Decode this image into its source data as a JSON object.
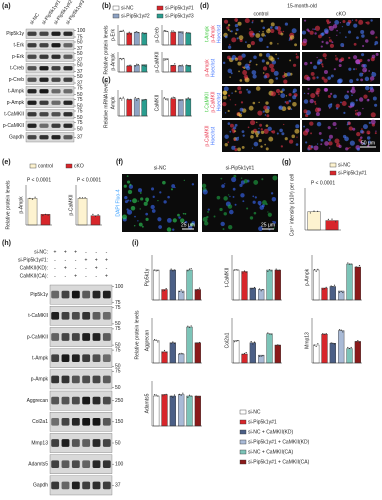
{
  "panel_a": {
    "label": "(a)",
    "lanes": [
      "si-NC",
      "si-Pip5k1γ#1",
      "si-Pip5k1γ#2",
      "si-Pip5k1γ#3"
    ],
    "rows": [
      {
        "name": "Pip5k1γ",
        "mw": [
          "100",
          "75"
        ]
      },
      {
        "name": "t-Erk",
        "mw": [
          "50",
          "37"
        ]
      },
      {
        "name": "p-Erk",
        "mw": [
          "50",
          "37"
        ]
      },
      {
        "name": "t-Creb",
        "mw": [
          "50",
          "37"
        ]
      },
      {
        "name": "p-Creb",
        "mw": [
          "50",
          "37"
        ]
      },
      {
        "name": "t-Ampk",
        "mw": [
          "75",
          "50"
        ]
      },
      {
        "name": "p-Ampk",
        "mw": [
          "75",
          "50"
        ]
      },
      {
        "name": "t-CaMKII",
        "mw": [
          "75",
          "50"
        ]
      },
      {
        "name": "p-CaMKII",
        "mw": [
          "75",
          "50"
        ]
      },
      {
        "name": "Gapdh",
        "mw": [
          "37"
        ]
      }
    ]
  },
  "panel_b": {
    "label": "(b)",
    "ylabel": "Relative protein levels",
    "series": [
      {
        "name": "si-NC",
        "color": "#ffffff"
      },
      {
        "name": "si-Pip5k1γ#1",
        "color": "#d7262b"
      },
      {
        "name": "si-Pip5k1γ#2",
        "color": "#8ea3c4"
      },
      {
        "name": "si-Pip5k1γ#3",
        "color": "#2a9d8f"
      }
    ],
    "charts": [
      {
        "name": "p-Erk",
        "values": [
          1,
          0.9,
          0.95,
          0.9
        ],
        "ylim": [
          0,
          1.5
        ]
      },
      {
        "name": "p-Creb",
        "values": [
          1,
          0.95,
          1,
          0.9
        ],
        "ylim": [
          0,
          1.5
        ]
      },
      {
        "name": "p-Ampk",
        "values": [
          1,
          0.45,
          0.5,
          0.55
        ],
        "ylim": [
          0,
          1.5
        ]
      },
      {
        "name": "p-CaMKII",
        "values": [
          1,
          0.5,
          0.45,
          0.5
        ],
        "ylim": [
          0,
          1.5
        ]
      }
    ]
  },
  "panel_c": {
    "label": "(c)",
    "ylabel": "Relative mRNA levels",
    "charts": [
      {
        "name": "Ampk",
        "values": [
          1,
          0.95,
          1,
          0.95
        ],
        "ylim": [
          0,
          1.5
        ]
      },
      {
        "name": "CaMKII",
        "values": [
          1,
          1,
          0.95,
          1
        ],
        "ylim": [
          0,
          1.5
        ]
      }
    ]
  },
  "panel_d": {
    "label": "(d)",
    "title": "15-month-old",
    "columns": [
      "control",
      "cKO"
    ],
    "rows": [
      [
        "t-Ampk",
        "p-Ampk",
        "Hoechst"
      ],
      [
        "p-Ampk",
        "Hoechst"
      ],
      [
        "t-CaMKII",
        "p-CaMKII",
        "Hoechst"
      ],
      [
        "p-CaMKII",
        "Hoechst"
      ]
    ],
    "scale": "50 μm"
  },
  "panel_e": {
    "label": "(e)",
    "ylabel": "Relative protein levels",
    "p": "P < 0.0001",
    "series": [
      {
        "name": "control",
        "color": "#fdf3d0"
      },
      {
        "name": "cKO",
        "color": "#d7262b"
      }
    ],
    "charts": [
      {
        "name": "p-Ampk",
        "values": [
          1,
          0.4
        ],
        "ylim": [
          0,
          1.5
        ]
      },
      {
        "name": "p-CaMKII",
        "values": [
          1,
          0.35
        ],
        "ylim": [
          0,
          1.5
        ]
      }
    ]
  },
  "panel_f": {
    "label": "(f)",
    "columns": [
      "si-NC",
      "si-Pip5k1γ#1"
    ],
    "stain": "DAPI Fluo-4",
    "scale": "25 μm"
  },
  "panel_g": {
    "label": "(g)",
    "ylabel": "Ca²⁺ intensity (x10³) per cell",
    "p": "P < 0.0001",
    "series": [
      {
        "name": "si-NC",
        "color": "#fdf3d0"
      },
      {
        "name": "si-Pip5k1γ#1",
        "color": "#d7262b"
      }
    ],
    "charts": [
      {
        "name": "",
        "values": [
          3.5,
          1.8
        ],
        "ylim": [
          0,
          8
        ]
      }
    ]
  },
  "panel_h": {
    "label": "(h)",
    "conditions": [
      {
        "name": "si-NC:",
        "signs": [
          "+",
          "+",
          "+",
          "-",
          "-",
          "-"
        ]
      },
      {
        "name": "si-Pip5k1γ#1:",
        "signs": [
          "-",
          "-",
          "-",
          "+",
          "+",
          "+"
        ]
      },
      {
        "name": "CaMKII(KD):",
        "signs": [
          "-",
          "+",
          "-",
          "-",
          "+",
          "-"
        ]
      },
      {
        "name": "CaMKII(CA):",
        "signs": [
          "-",
          "-",
          "+",
          "-",
          "-",
          "+"
        ]
      }
    ],
    "rows": [
      {
        "name": "Pip5k1γ",
        "mw": [
          "100",
          "75"
        ]
      },
      {
        "name": "t-CaMKII",
        "mw": [
          "75",
          "50"
        ]
      },
      {
        "name": "p-CaMKII",
        "mw": [
          "75",
          "50"
        ]
      },
      {
        "name": "t-Ampk",
        "mw": [
          "75",
          "50"
        ]
      },
      {
        "name": "p-Ampk",
        "mw": [
          "75",
          "50"
        ]
      },
      {
        "name": "Aggrecan",
        "mw": [
          "250"
        ]
      },
      {
        "name": "Col2a1",
        "mw": [
          "150"
        ]
      },
      {
        "name": "Mmp13",
        "mw": [
          "50"
        ]
      },
      {
        "name": "Adamts5",
        "mw": [
          "100"
        ]
      },
      {
        "name": "Gapdh",
        "mw": [
          "37"
        ]
      }
    ]
  },
  "panel_i": {
    "label": "(i)",
    "ylabel": "Relative protein levels",
    "series": [
      {
        "name": "si-NC",
        "color": "#ffffff"
      },
      {
        "name": "si-Pip5k1γ#1",
        "color": "#d7262b"
      },
      {
        "name": "si-NC + CaMKII(KD)",
        "color": "#4b5f86"
      },
      {
        "name": "si-Pip5k1γ#1 + CaMKII(KD)",
        "color": "#a9bad6"
      },
      {
        "name": "si-NC + CaMKII(CA)",
        "color": "#7cc4b8"
      },
      {
        "name": "si-Pip5k1γ#1 + CaMKII(CA)",
        "color": "#8b1a1a"
      }
    ],
    "charts": [
      {
        "name": "Pip5k1γ",
        "values": [
          1,
          0.35,
          1,
          0.3,
          1,
          0.35
        ],
        "ylim": [
          0,
          1.5
        ]
      },
      {
        "name": "t-CaMKII",
        "values": [
          1,
          0.95,
          0.4,
          0.35,
          1,
          1
        ],
        "ylim": [
          0,
          1.5
        ]
      },
      {
        "name": "p-Ampk",
        "values": [
          1,
          0.4,
          0.45,
          0.3,
          1.2,
          1.1
        ],
        "ylim": [
          0,
          1.5
        ]
      },
      {
        "name": "Aggrecan",
        "values": [
          1,
          0.5,
          0.9,
          0.4,
          1.6,
          0.9
        ],
        "ylim": [
          0,
          2
        ]
      },
      {
        "name": "Col2a1",
        "values": [
          1,
          0.4,
          0.9,
          0.35,
          1.3,
          0.8
        ],
        "ylim": [
          0,
          2
        ]
      },
      {
        "name": "Mmp13",
        "values": [
          1,
          1.6,
          1.1,
          1.8,
          0.8,
          1.2
        ],
        "ylim": [
          0,
          2.5
        ]
      },
      {
        "name": "Adamts5",
        "values": [
          1,
          1.05,
          1,
          1.05,
          1,
          1
        ],
        "ylim": [
          0,
          1.5
        ]
      }
    ]
  }
}
